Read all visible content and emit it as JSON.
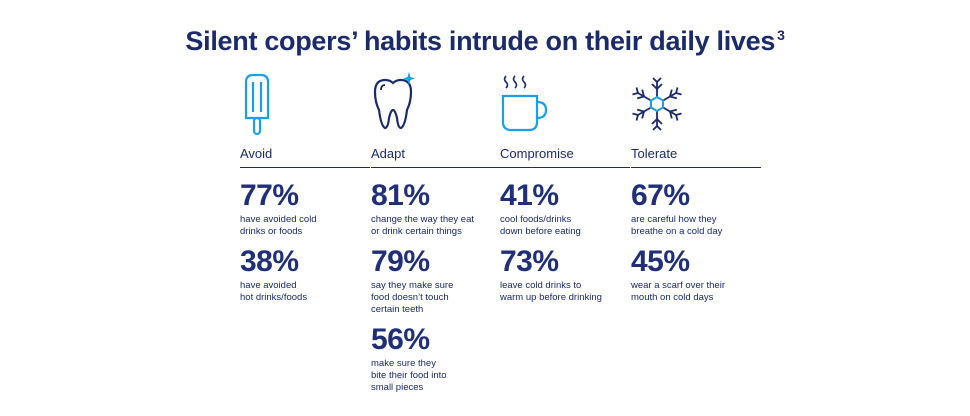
{
  "title": "Silent copers’ habits intrude on their daily lives",
  "title_superscript": "3",
  "colors": {
    "primary": "#1a2a6c",
    "accent": "#1aa0e8"
  },
  "columns": [
    {
      "icon": "popsicle-icon",
      "label": "Avoid",
      "stats": [
        {
          "value": "77%",
          "text": "have avoided cold\ndrinks or foods"
        },
        {
          "value": "38%",
          "text": "have avoided\nhot drinks/foods"
        }
      ]
    },
    {
      "icon": "sparkling-tooth-icon",
      "label": "Adapt",
      "stats": [
        {
          "value": "81%",
          "text": "change the way they eat\nor drink certain things"
        },
        {
          "value": "79%",
          "text": "say they make sure\nfood doesn’t touch\ncertain teeth"
        },
        {
          "value": "56%",
          "text": "make sure they\nbite their food into\nsmall pieces"
        }
      ]
    },
    {
      "icon": "hot-mug-icon",
      "label": "Compromise",
      "stats": [
        {
          "value": "41%",
          "text": "cool foods/drinks\ndown before eating"
        },
        {
          "value": "73%",
          "text": "leave cold drinks to\nwarm up before drinking"
        }
      ]
    },
    {
      "icon": "snowflake-icon",
      "label": "Tolerate",
      "stats": [
        {
          "value": "67%",
          "text": "are careful how they\nbreathe on a cold day"
        },
        {
          "value": "45%",
          "text": "wear a scarf over their\nmouth on cold days"
        }
      ]
    }
  ]
}
